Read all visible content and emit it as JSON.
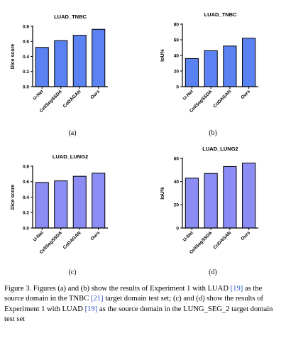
{
  "colors": {
    "bar_blue": "#5a82f2",
    "bar_purple": "#8c8cf5",
    "citation": "#2b55c4"
  },
  "chart_data": [
    {
      "id": "a",
      "type": "bar",
      "title": "LUAD_TNBC",
      "ylabel": "Dice score",
      "categories": [
        "U-Net",
        "CellSegSSDA",
        "CoDAGAN",
        "Ours"
      ],
      "values": [
        0.52,
        0.61,
        0.68,
        0.76
      ],
      "ylim": [
        0,
        0.8
      ],
      "yticks": [
        "0.0",
        "0.2",
        "0.4",
        "0.6",
        "0.8"
      ],
      "color": "#5a82f2",
      "subfigure": "(a)"
    },
    {
      "id": "b",
      "type": "bar",
      "title": "LUAD_TNBC",
      "ylabel": "IoU%",
      "categories": [
        "U-Net",
        "CellSegSSDA",
        "CoDAGAN",
        "Ours"
      ],
      "values": [
        36,
        46,
        52,
        62
      ],
      "ylim": [
        0,
        80
      ],
      "yticks": [
        "0",
        "20",
        "40",
        "60",
        "80"
      ],
      "color": "#5a82f2",
      "subfigure": "(b)"
    },
    {
      "id": "c",
      "type": "bar",
      "title": "LUAD_LUNG2",
      "ylabel": "Dice score",
      "categories": [
        "U-Net",
        "CellSegSSDA",
        "CoDAGAN",
        "Ours"
      ],
      "values": [
        0.59,
        0.61,
        0.67,
        0.71
      ],
      "ylim": [
        0,
        0.8
      ],
      "yticks": [
        "0.0",
        "0.2",
        "0.4",
        "0.6",
        "0.8"
      ],
      "color": "#8c8cf5",
      "subfigure": "(c)"
    },
    {
      "id": "d",
      "type": "bar",
      "title": "LUAD_LUNG2",
      "ylabel": "IoU%",
      "categories": [
        "U-Net",
        "CellSegSSDA",
        "CoDAGAN",
        "Ours"
      ],
      "values": [
        43,
        47,
        53,
        56
      ],
      "ylim": [
        0,
        60
      ],
      "yticks": [
        "0",
        "20",
        "40",
        "60"
      ],
      "color": "#8c8cf5",
      "subfigure": "(d)"
    }
  ],
  "caption": {
    "t1": "Figure 3. Figures (a) and (b) show the results of Experiment 1 with LUAD ",
    "r1": "[19]",
    "t2": " as the source domain in the TNBC ",
    "r2": "[21]",
    "t3": " target domain test set; (c) and (d) show the results of Experiment 1 with LUAD ",
    "r3": "[19]",
    "t4": " as the source domain in the LUNG_SEG_2 target domain test set"
  }
}
